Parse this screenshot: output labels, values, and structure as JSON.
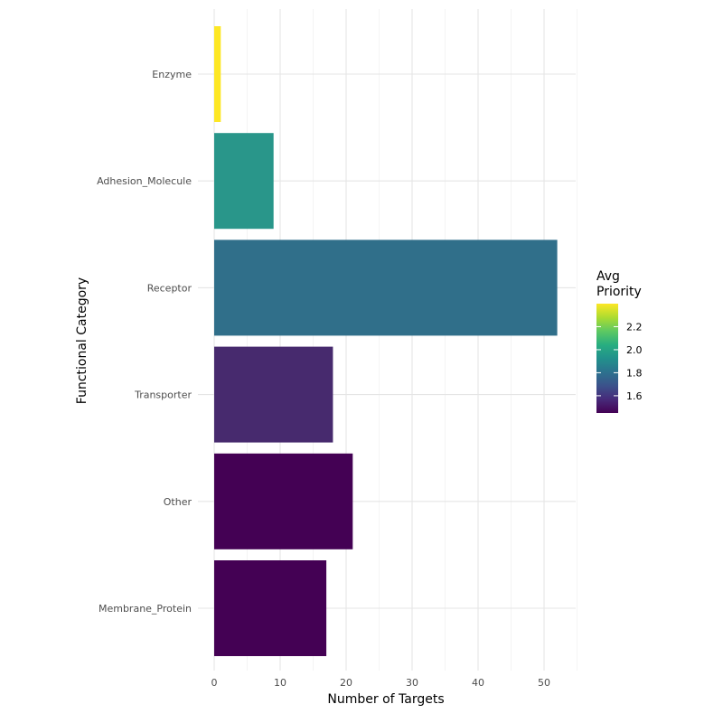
{
  "chart_data": {
    "type": "bar",
    "orientation": "horizontal",
    "title": "",
    "xlabel": "Number of Targets",
    "ylabel": "Functional Category",
    "xlim": [
      0,
      55
    ],
    "x_ticks": [
      0,
      10,
      20,
      30,
      40,
      50
    ],
    "grid": true,
    "categories": [
      "Enzyme",
      "Adhesion_Molecule",
      "Receptor",
      "Transporter",
      "Other",
      "Membrane_Protein"
    ],
    "values": [
      1,
      9,
      52,
      18,
      21,
      17
    ],
    "avg_priority": [
      2.4,
      1.9,
      1.75,
      1.55,
      1.45,
      1.45
    ],
    "bar_colors": [
      "#FDE725",
      "#29968A",
      "#306F8A",
      "#472A6E",
      "#440154",
      "#440154"
    ],
    "legend": {
      "title_lines": [
        "Avg",
        "Priority"
      ],
      "position": "right",
      "min": 1.45,
      "max": 2.4,
      "ticks": [
        2.2,
        2.0,
        1.8,
        1.6
      ],
      "tick_labels": [
        "2.2",
        "2.0",
        "1.8",
        "1.6"
      ],
      "colormap": [
        "#440154",
        "#472A7A",
        "#3B528B",
        "#2C728E",
        "#21918C",
        "#28AE80",
        "#5EC962",
        "#ADDC30",
        "#FDE725"
      ]
    }
  }
}
